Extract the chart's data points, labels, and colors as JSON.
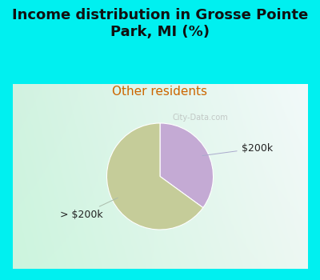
{
  "title": "Income distribution in Grosse Pointe\nPark, MI (%)",
  "subtitle": "Other residents",
  "title_color": "#111111",
  "subtitle_color": "#cc6600",
  "background_cyan": "#00f0f0",
  "slices": [
    {
      "label": "> $200k",
      "value": 65,
      "color": "#c5cc99"
    },
    {
      "label": "$200k",
      "value": 35,
      "color": "#c4aad4"
    }
  ],
  "watermark": "City-Data.com",
  "fig_width": 4.0,
  "fig_height": 3.5,
  "dpi": 100,
  "title_fontsize": 13,
  "subtitle_fontsize": 11,
  "label_fontsize": 9,
  "startangle": 90,
  "gradient_color_topleft": [
    0.82,
    0.95,
    0.88
  ],
  "gradient_color_topright": [
    0.95,
    0.98,
    0.98
  ],
  "gradient_color_bottomleft": [
    0.8,
    0.96,
    0.87
  ],
  "gradient_color_bottomright": [
    0.93,
    0.97,
    0.95
  ]
}
